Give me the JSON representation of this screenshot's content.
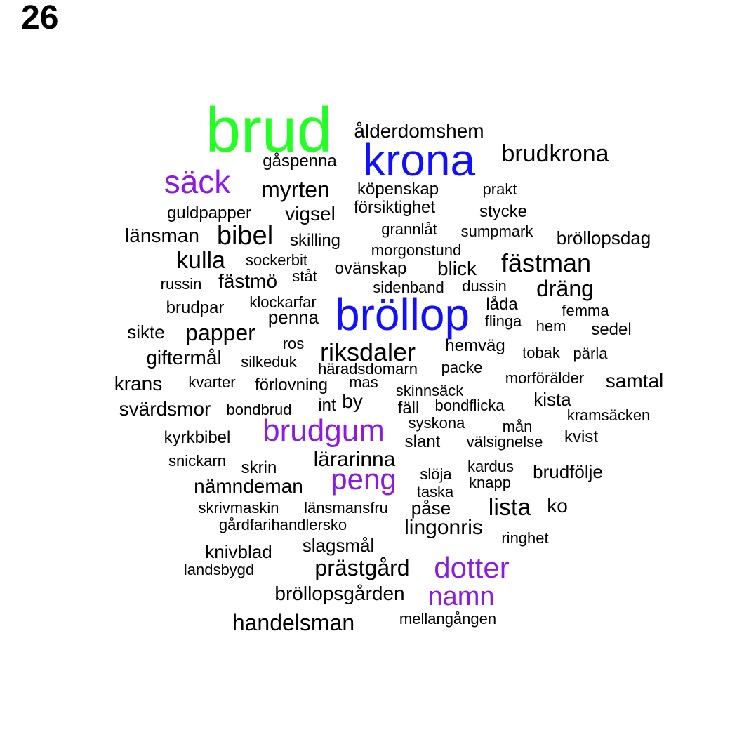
{
  "page_number": "26",
  "colors": {
    "green": "#22ff22",
    "blue": "#1010ff",
    "purple": "#8c1ae6",
    "black": "#000000"
  },
  "words": [
    {
      "text": "brud",
      "color": "green"
    },
    {
      "text": "ålderdomshem",
      "color": "black"
    },
    {
      "text": "krona",
      "color": "blue"
    },
    {
      "text": "brudkrona",
      "color": "black"
    },
    {
      "text": "gåspenna",
      "color": "black"
    },
    {
      "text": "säck",
      "color": "purple"
    },
    {
      "text": "myrten",
      "color": "black"
    },
    {
      "text": "köpenskap",
      "color": "black"
    },
    {
      "text": "prakt",
      "color": "black"
    },
    {
      "text": "guldpapper",
      "color": "black"
    },
    {
      "text": "vigsel",
      "color": "black"
    },
    {
      "text": "försiktighet",
      "color": "black"
    },
    {
      "text": "stycke",
      "color": "black"
    },
    {
      "text": "länsman",
      "color": "black"
    },
    {
      "text": "bibel",
      "color": "black"
    },
    {
      "text": "skilling",
      "color": "black"
    },
    {
      "text": "grannlåt",
      "color": "black"
    },
    {
      "text": "sumpmark",
      "color": "black"
    },
    {
      "text": "bröllopsdag",
      "color": "black"
    },
    {
      "text": "kulla",
      "color": "black"
    },
    {
      "text": "sockerbit",
      "color": "black"
    },
    {
      "text": "morgonstund",
      "color": "black"
    },
    {
      "text": "fästman",
      "color": "black"
    },
    {
      "text": "russin",
      "color": "black"
    },
    {
      "text": "fästmö",
      "color": "black"
    },
    {
      "text": "ståt",
      "color": "black"
    },
    {
      "text": "ovänskap",
      "color": "black"
    },
    {
      "text": "blick",
      "color": "black"
    },
    {
      "text": "sidenband",
      "color": "black"
    },
    {
      "text": "dussin",
      "color": "black"
    },
    {
      "text": "dräng",
      "color": "black"
    },
    {
      "text": "brudpar",
      "color": "black"
    },
    {
      "text": "klockarfar",
      "color": "black"
    },
    {
      "text": "bröllop",
      "color": "blue"
    },
    {
      "text": "låda",
      "color": "black"
    },
    {
      "text": "femma",
      "color": "black"
    },
    {
      "text": "penna",
      "color": "black"
    },
    {
      "text": "flinga",
      "color": "black"
    },
    {
      "text": "hem",
      "color": "black"
    },
    {
      "text": "sedel",
      "color": "black"
    },
    {
      "text": "sikte",
      "color": "black"
    },
    {
      "text": "papper",
      "color": "black"
    },
    {
      "text": "ros",
      "color": "black"
    },
    {
      "text": "hemväg",
      "color": "black"
    },
    {
      "text": "riksdaler",
      "color": "black"
    },
    {
      "text": "tobak",
      "color": "black"
    },
    {
      "text": "pärla",
      "color": "black"
    },
    {
      "text": "giftermål",
      "color": "black"
    },
    {
      "text": "silkeduk",
      "color": "black"
    },
    {
      "text": "häradsdomarn",
      "color": "black"
    },
    {
      "text": "packe",
      "color": "black"
    },
    {
      "text": "krans",
      "color": "black"
    },
    {
      "text": "kvarter",
      "color": "black"
    },
    {
      "text": "förlovning",
      "color": "black"
    },
    {
      "text": "mas",
      "color": "black"
    },
    {
      "text": "morförälder",
      "color": "black"
    },
    {
      "text": "samtal",
      "color": "black"
    },
    {
      "text": "skinnsäck",
      "color": "black"
    },
    {
      "text": "svärdsmor",
      "color": "black"
    },
    {
      "text": "bondbrud",
      "color": "black"
    },
    {
      "text": "int",
      "color": "black"
    },
    {
      "text": "by",
      "color": "black"
    },
    {
      "text": "fäll",
      "color": "black"
    },
    {
      "text": "bondflicka",
      "color": "black"
    },
    {
      "text": "kista",
      "color": "black"
    },
    {
      "text": "kramsäcken",
      "color": "black"
    },
    {
      "text": "brudgum",
      "color": "purple"
    },
    {
      "text": "syskona",
      "color": "black"
    },
    {
      "text": "mån",
      "color": "black"
    },
    {
      "text": "kyrkbibel",
      "color": "black"
    },
    {
      "text": "slant",
      "color": "black"
    },
    {
      "text": "välsignelse",
      "color": "black"
    },
    {
      "text": "kvist",
      "color": "black"
    },
    {
      "text": "snickarn",
      "color": "black"
    },
    {
      "text": "lärarinna",
      "color": "black"
    },
    {
      "text": "skrin",
      "color": "black"
    },
    {
      "text": "slöja",
      "color": "black"
    },
    {
      "text": "kardus",
      "color": "black"
    },
    {
      "text": "brudfölje",
      "color": "black"
    },
    {
      "text": "peng",
      "color": "purple"
    },
    {
      "text": "nämndeman",
      "color": "black"
    },
    {
      "text": "knapp",
      "color": "black"
    },
    {
      "text": "taska",
      "color": "black"
    },
    {
      "text": "skrivmaskin",
      "color": "black"
    },
    {
      "text": "länsmansfru",
      "color": "black"
    },
    {
      "text": "påse",
      "color": "black"
    },
    {
      "text": "lista",
      "color": "black"
    },
    {
      "text": "ko",
      "color": "black"
    },
    {
      "text": "gårdfarihandlersko",
      "color": "black"
    },
    {
      "text": "lingonris",
      "color": "black"
    },
    {
      "text": "ringhet",
      "color": "black"
    },
    {
      "text": "slagsmål",
      "color": "black"
    },
    {
      "text": "knivblad",
      "color": "black"
    },
    {
      "text": "landsbygd",
      "color": "black"
    },
    {
      "text": "prästgård",
      "color": "black"
    },
    {
      "text": "dotter",
      "color": "purple"
    },
    {
      "text": "bröllopsgården",
      "color": "black"
    },
    {
      "text": "namn",
      "color": "purple"
    },
    {
      "text": "handelsman",
      "color": "black"
    },
    {
      "text": "mellangången",
      "color": "black"
    }
  ]
}
